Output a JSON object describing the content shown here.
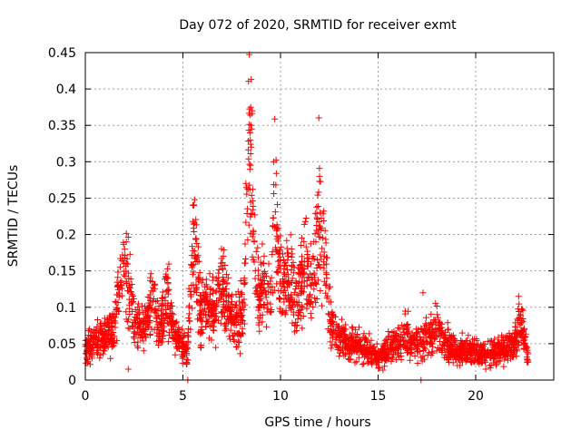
{
  "chart_data": {
    "type": "scatter",
    "title": "Day 072 of 2020, SRMTID for receiver exmt",
    "xlabel": "GPS time / hours",
    "ylabel": "SRMTID / TECUs",
    "xlim": [
      0,
      24
    ],
    "ylim": [
      0,
      0.45
    ],
    "xticks": [
      0,
      5,
      10,
      15,
      20
    ],
    "yticks": [
      0,
      0.05,
      0.1,
      0.15,
      0.2,
      0.25,
      0.3,
      0.35,
      0.4,
      0.45
    ],
    "ytick_labels": [
      "0",
      "0.05",
      "0.1",
      "0.15",
      "0.2",
      "0.25",
      "0.3",
      "0.35",
      "0.4",
      "0.45"
    ],
    "xtick_labels": [
      "0",
      "5",
      "10",
      "15",
      "20"
    ],
    "grid": true,
    "marker": "+",
    "color": "#ff0000",
    "x_extent": [
      0,
      22.7
    ],
    "series": [
      {
        "name": "SRMTID",
        "envelope": [
          [
            0.0,
            0.045
          ],
          [
            0.5,
            0.05
          ],
          [
            1.0,
            0.06
          ],
          [
            1.5,
            0.07
          ],
          [
            1.8,
            0.15
          ],
          [
            2.1,
            0.15
          ],
          [
            2.5,
            0.08
          ],
          [
            3.0,
            0.07
          ],
          [
            3.5,
            0.11
          ],
          [
            3.8,
            0.06
          ],
          [
            4.2,
            0.12
          ],
          [
            4.5,
            0.06
          ],
          [
            4.9,
            0.05
          ],
          [
            5.2,
            0.04
          ],
          [
            5.6,
            0.2
          ],
          [
            5.9,
            0.09
          ],
          [
            6.3,
            0.11
          ],
          [
            6.6,
            0.08
          ],
          [
            7.0,
            0.14
          ],
          [
            7.3,
            0.1
          ],
          [
            7.7,
            0.08
          ],
          [
            8.1,
            0.09
          ],
          [
            8.4,
            0.35
          ],
          [
            8.6,
            0.2
          ],
          [
            8.9,
            0.12
          ],
          [
            9.2,
            0.13
          ],
          [
            9.5,
            0.11
          ],
          [
            9.7,
            0.25
          ],
          [
            10.0,
            0.13
          ],
          [
            10.4,
            0.14
          ],
          [
            10.8,
            0.1
          ],
          [
            11.2,
            0.15
          ],
          [
            11.6,
            0.12
          ],
          [
            12.0,
            0.24
          ],
          [
            12.3,
            0.15
          ],
          [
            12.6,
            0.07
          ],
          [
            13.0,
            0.06
          ],
          [
            13.5,
            0.05
          ],
          [
            14.0,
            0.05
          ],
          [
            14.5,
            0.04
          ],
          [
            15.0,
            0.03
          ],
          [
            15.5,
            0.04
          ],
          [
            16.0,
            0.05
          ],
          [
            16.5,
            0.06
          ],
          [
            17.0,
            0.05
          ],
          [
            17.5,
            0.06
          ],
          [
            18.0,
            0.07
          ],
          [
            18.5,
            0.05
          ],
          [
            19.0,
            0.04
          ],
          [
            19.5,
            0.04
          ],
          [
            20.0,
            0.04
          ],
          [
            20.5,
            0.035
          ],
          [
            21.0,
            0.04
          ],
          [
            21.5,
            0.045
          ],
          [
            22.0,
            0.05
          ],
          [
            22.3,
            0.08
          ],
          [
            22.7,
            0.03
          ]
        ],
        "notable_points": [
          {
            "x": 5.25,
            "y": 0.0
          },
          {
            "x": 2.1,
            "y": 0.19
          },
          {
            "x": 8.5,
            "y": 0.413
          },
          {
            "x": 8.55,
            "y": 0.37
          },
          {
            "x": 8.45,
            "y": 0.33
          },
          {
            "x": 9.65,
            "y": 0.3
          },
          {
            "x": 12.0,
            "y": 0.28
          },
          {
            "x": 5.55,
            "y": 0.24
          },
          {
            "x": 17.2,
            "y": 0.0
          },
          {
            "x": 17.3,
            "y": 0.12
          },
          {
            "x": 22.2,
            "y": 0.115
          },
          {
            "x": 2.2,
            "y": 0.015
          }
        ]
      }
    ]
  }
}
